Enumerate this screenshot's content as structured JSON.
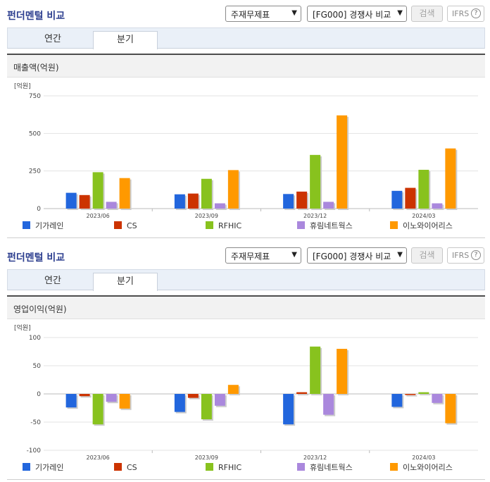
{
  "panels": [
    {
      "title": "펀더멘털 비교",
      "select1": "주재무제표",
      "select2": "[FG000] 경쟁사 비교",
      "search_label": "검색",
      "ifrs_label": "IFRS",
      "help_glyph": "?",
      "tabs": [
        "연간",
        "분기"
      ],
      "active_tab": "분기",
      "section_title": "매출액(억원)"
    },
    {
      "title": "펀더멘털 비교",
      "select1": "주재무제표",
      "select2": "[FG000] 경쟁사 비교",
      "search_label": "검색",
      "ifrs_label": "IFRS",
      "help_glyph": "?",
      "tabs": [
        "연간",
        "분기"
      ],
      "active_tab": "분기",
      "section_title": "영업이익(억원)"
    }
  ],
  "chart_data": [
    {
      "type": "bar",
      "unit_label": "[억원]",
      "categories": [
        "2023/06",
        "2023/09",
        "2023/12",
        "2024/03"
      ],
      "ylim": [
        0,
        750
      ],
      "yticks": [
        0,
        250,
        500,
        750
      ],
      "grid": true,
      "legend_position": "bottom",
      "series": [
        {
          "name": "기가레인",
          "color": "#2266dd",
          "values": [
            105,
            95,
            97,
            118
          ]
        },
        {
          "name": "CS",
          "color": "#cc3300",
          "values": [
            90,
            100,
            113,
            138
          ]
        },
        {
          "name": "RFHIC",
          "color": "#88c21e",
          "values": [
            242,
            198,
            357,
            258
          ]
        },
        {
          "name": "휴림네트웍스",
          "color": "#aa88dd",
          "values": [
            45,
            35,
            45,
            35
          ]
        },
        {
          "name": "이노와이어리스",
          "color": "#ff9900",
          "values": [
            203,
            256,
            620,
            400
          ]
        }
      ]
    },
    {
      "type": "bar",
      "unit_label": "[억원]",
      "categories": [
        "2023/06",
        "2023/09",
        "2023/12",
        "2024/03"
      ],
      "ylim": [
        -100,
        100
      ],
      "yticks": [
        -100,
        -50,
        0,
        50,
        100
      ],
      "grid": true,
      "legend_position": "bottom",
      "series": [
        {
          "name": "기가레인",
          "color": "#2266dd",
          "values": [
            -24,
            -32,
            -54,
            -23
          ]
        },
        {
          "name": "CS",
          "color": "#cc3300",
          "values": [
            -4,
            -7,
            3,
            -2
          ]
        },
        {
          "name": "RFHIC",
          "color": "#88c21e",
          "values": [
            -54,
            -45,
            84,
            3
          ]
        },
        {
          "name": "휴림네트웍스",
          "color": "#aa88dd",
          "values": [
            -14,
            -21,
            -37,
            -16
          ]
        },
        {
          "name": "이노와이어리스",
          "color": "#ff9900",
          "values": [
            -26,
            16,
            80,
            -52
          ]
        }
      ]
    }
  ]
}
